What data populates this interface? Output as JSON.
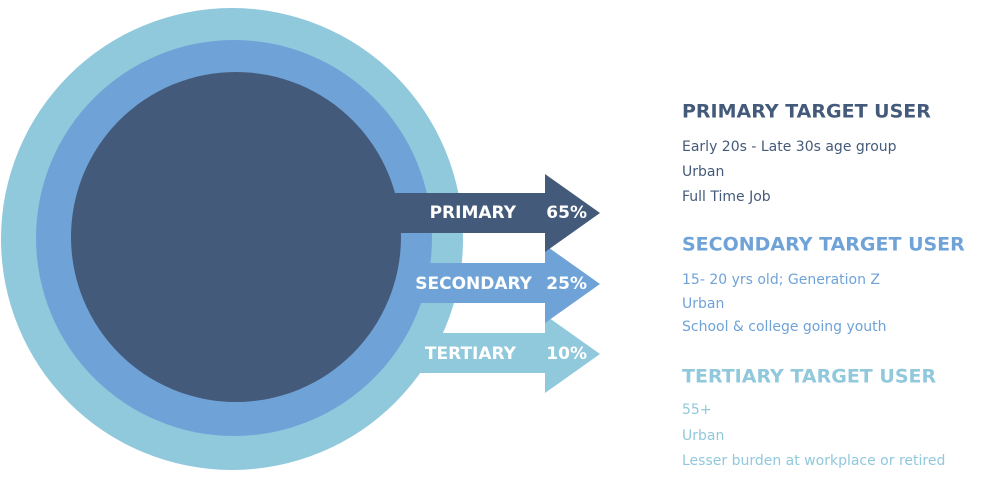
{
  "segments": [
    {
      "label": "PRIMARY",
      "percent": "65%",
      "title": "PRIMARY TARGET USER",
      "lines": [
        "Early 20s - Late 30s age group",
        "Urban",
        "Full Time Job"
      ]
    },
    {
      "label": "SECONDARY",
      "percent": "25%",
      "title": "SECONDARY TARGET USER",
      "lines": [
        "15- 20 yrs old; Generation Z",
        "Urban",
        "School & college going youth"
      ]
    },
    {
      "label": "TERTIARY",
      "percent": "10%",
      "title": "TERTIARY TARGET USER",
      "lines": [
        "55+",
        "Urban",
        "Lesser burden at workplace or retired"
      ]
    }
  ]
}
